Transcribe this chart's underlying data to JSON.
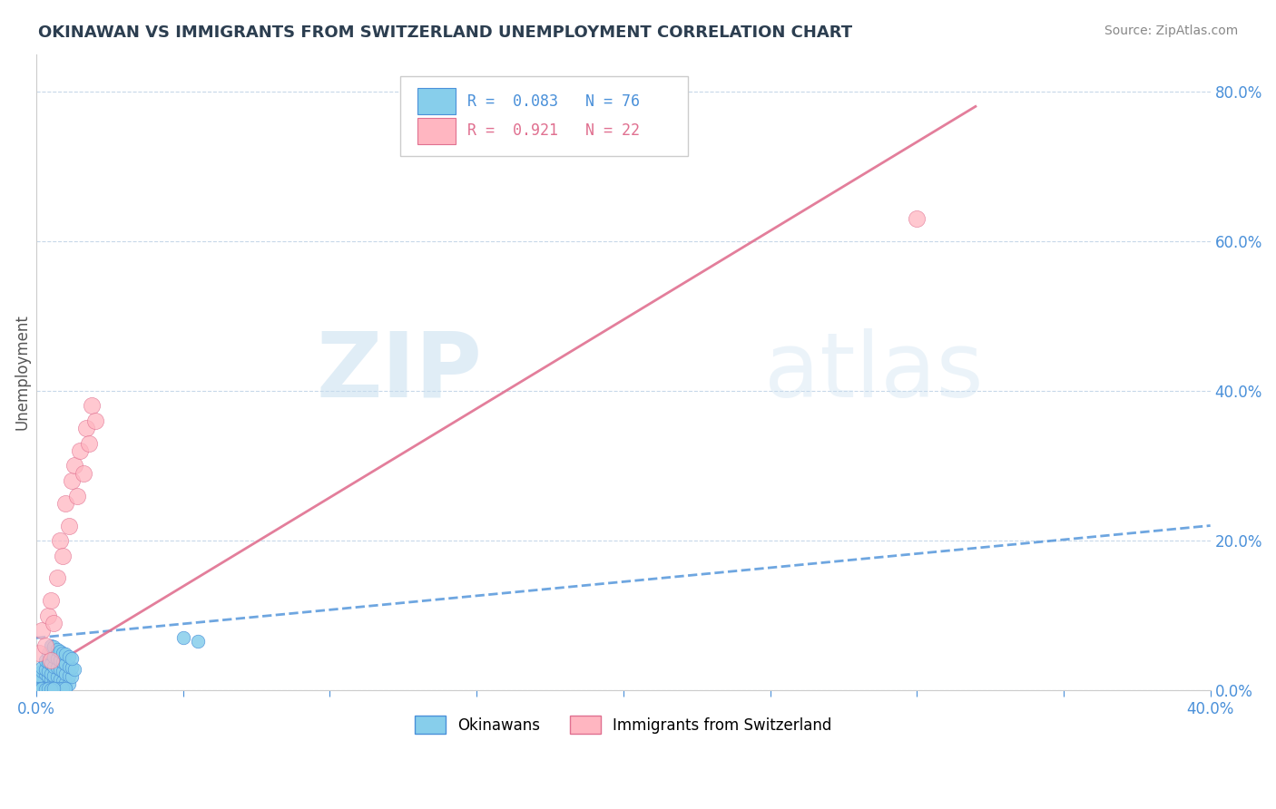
{
  "title": "OKINAWAN VS IMMIGRANTS FROM SWITZERLAND UNEMPLOYMENT CORRELATION CHART",
  "source": "Source: ZipAtlas.com",
  "ylabel": "Unemployment",
  "ytick_labels": [
    "0.0%",
    "20.0%",
    "40.0%",
    "60.0%",
    "80.0%"
  ],
  "ytick_values": [
    0.0,
    0.2,
    0.4,
    0.6,
    0.8
  ],
  "xlim": [
    0.0,
    0.4
  ],
  "ylim": [
    0.0,
    0.85
  ],
  "legend_label_blue": "Okinawans",
  "legend_label_pink": "Immigrants from Switzerland",
  "R_blue": 0.083,
  "N_blue": 76,
  "R_pink": 0.921,
  "N_pink": 22,
  "color_blue": "#87CEEB",
  "color_pink": "#FFB6C1",
  "color_blue_dark": "#4a90d9",
  "color_pink_dark": "#e07090",
  "title_color": "#2c3e50",
  "axis_color": "#4a90d9",
  "watermark_zip": "ZIP",
  "watermark_atlas": "atlas",
  "blue_trend_x": [
    0.0,
    0.4
  ],
  "blue_trend_y": [
    0.07,
    0.22
  ],
  "pink_trend_x": [
    0.0,
    0.32
  ],
  "pink_trend_y": [
    0.02,
    0.78
  ],
  "blue_scatter_x": [
    0.002,
    0.001,
    0.003,
    0.0,
    0.001,
    0.002,
    0.0,
    0.001,
    0.002,
    0.003,
    0.004,
    0.005,
    0.001,
    0.002,
    0.003,
    0.004,
    0.005,
    0.006,
    0.007,
    0.008,
    0.009,
    0.01,
    0.002,
    0.003,
    0.004,
    0.005,
    0.006,
    0.007,
    0.008,
    0.009,
    0.01,
    0.011,
    0.003,
    0.004,
    0.005,
    0.006,
    0.007,
    0.008,
    0.009,
    0.01,
    0.011,
    0.012,
    0.004,
    0.005,
    0.006,
    0.007,
    0.008,
    0.009,
    0.01,
    0.011,
    0.012,
    0.013,
    0.005,
    0.006,
    0.007,
    0.008,
    0.009,
    0.01,
    0.011,
    0.012,
    0.05,
    0.055,
    0.001,
    0.002,
    0.003,
    0.004,
    0.005,
    0.006,
    0.007,
    0.008,
    0.009,
    0.01,
    0.001,
    0.002,
    0.003,
    0.004,
    0.005,
    0.006
  ],
  "blue_scatter_y": [
    0.005,
    0.008,
    0.003,
    0.01,
    0.012,
    0.007,
    0.015,
    0.018,
    0.013,
    0.009,
    0.006,
    0.004,
    0.02,
    0.025,
    0.022,
    0.018,
    0.015,
    0.012,
    0.01,
    0.008,
    0.006,
    0.005,
    0.03,
    0.028,
    0.025,
    0.022,
    0.02,
    0.018,
    0.015,
    0.012,
    0.01,
    0.008,
    0.04,
    0.038,
    0.035,
    0.032,
    0.03,
    0.028,
    0.025,
    0.022,
    0.02,
    0.018,
    0.05,
    0.048,
    0.045,
    0.042,
    0.04,
    0.038,
    0.035,
    0.032,
    0.03,
    0.028,
    0.06,
    0.058,
    0.055,
    0.052,
    0.05,
    0.048,
    0.045,
    0.042,
    0.07,
    0.065,
    0.002,
    0.003,
    0.002,
    0.003,
    0.004,
    0.003,
    0.002,
    0.003,
    0.002,
    0.003,
    0.001,
    0.002,
    0.001,
    0.002,
    0.001,
    0.002
  ],
  "pink_scatter_x": [
    0.001,
    0.002,
    0.003,
    0.004,
    0.005,
    0.006,
    0.007,
    0.008,
    0.009,
    0.01,
    0.011,
    0.012,
    0.013,
    0.014,
    0.015,
    0.016,
    0.017,
    0.018,
    0.019,
    0.02,
    0.3,
    0.005
  ],
  "pink_scatter_y": [
    0.05,
    0.08,
    0.06,
    0.1,
    0.12,
    0.09,
    0.15,
    0.2,
    0.18,
    0.25,
    0.22,
    0.28,
    0.3,
    0.26,
    0.32,
    0.29,
    0.35,
    0.33,
    0.38,
    0.36,
    0.63,
    0.04
  ]
}
